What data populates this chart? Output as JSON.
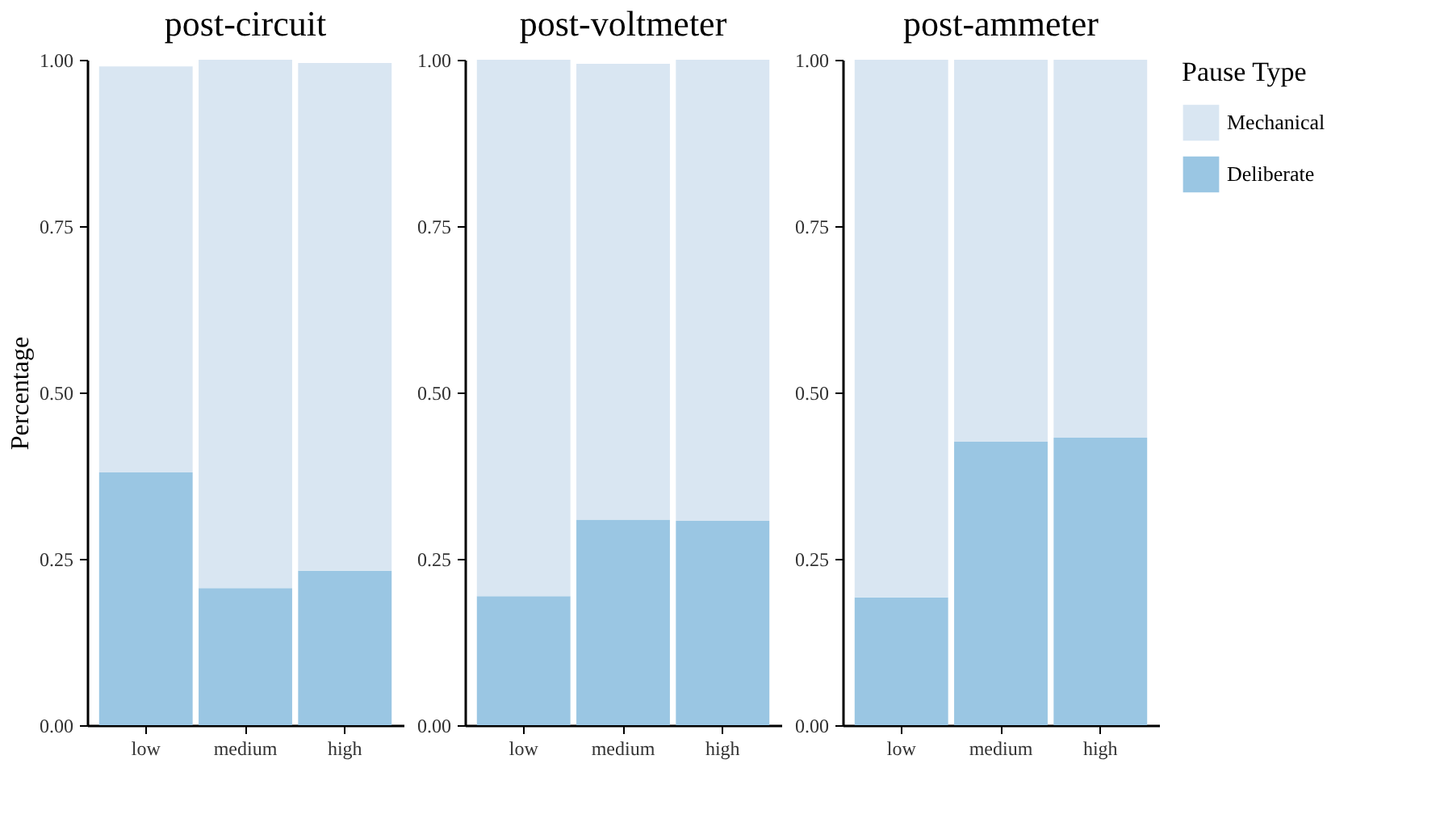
{
  "chart_data": [
    {
      "type": "bar",
      "stacked": true,
      "title": "post-circuit",
      "ylabel": "Percentage",
      "categories": [
        "low",
        "medium",
        "high"
      ],
      "series": [
        {
          "color": "#9ac6e3",
          "values": [
            0.38,
            0.206,
            0.232
          ]
        },
        {
          "color": "#d9e6f2",
          "values": [
            0.61,
            0.794,
            0.763
          ]
        }
      ],
      "ylim": [
        0,
        1
      ],
      "yticks": [
        {
          "value": 0,
          "label": "0.00"
        },
        {
          "value": 0.25,
          "label": "0.25"
        },
        {
          "value": 0.5,
          "label": "0.50"
        },
        {
          "value": 0.75,
          "label": "0.75"
        },
        {
          "value": 1,
          "label": "1.00"
        }
      ],
      "grid": false,
      "legend": false
    },
    {
      "type": "bar",
      "stacked": true,
      "title": "post-voltmeter",
      "categories": [
        "low",
        "medium",
        "high"
      ],
      "series": [
        {
          "color": "#9ac6e3",
          "values": [
            0.194,
            0.309,
            0.307
          ]
        },
        {
          "color": "#d9e6f2",
          "values": [
            0.806,
            0.685,
            0.693
          ]
        }
      ],
      "ylim": [
        0,
        1
      ],
      "yticks": [
        {
          "value": 0,
          "label": "0.00"
        },
        {
          "value": 0.25,
          "label": "0.25"
        },
        {
          "value": 0.5,
          "label": "0.50"
        },
        {
          "value": 0.75,
          "label": "0.75"
        },
        {
          "value": 1,
          "label": "1.00"
        }
      ],
      "grid": false,
      "legend": false
    },
    {
      "type": "bar",
      "stacked": true,
      "title": "post-ammeter",
      "legend_title": "Pause Type",
      "categories": [
        "low",
        "medium",
        "high"
      ],
      "series": [
        {
          "name": "Deliberate",
          "color": "#9ac6e3",
          "values": [
            0.192,
            0.426,
            0.432
          ]
        },
        {
          "name": "Mechanical",
          "color": "#d9e6f2",
          "values": [
            0.808,
            0.574,
            0.568
          ]
        }
      ],
      "ylim": [
        0,
        1
      ],
      "yticks": [
        {
          "value": 0,
          "label": "0.00"
        },
        {
          "value": 0.25,
          "label": "0.25"
        },
        {
          "value": 0.5,
          "label": "0.50"
        },
        {
          "value": 0.75,
          "label": "0.75"
        },
        {
          "value": 1,
          "label": "1.00"
        }
      ],
      "grid": false,
      "legend": "right"
    }
  ]
}
